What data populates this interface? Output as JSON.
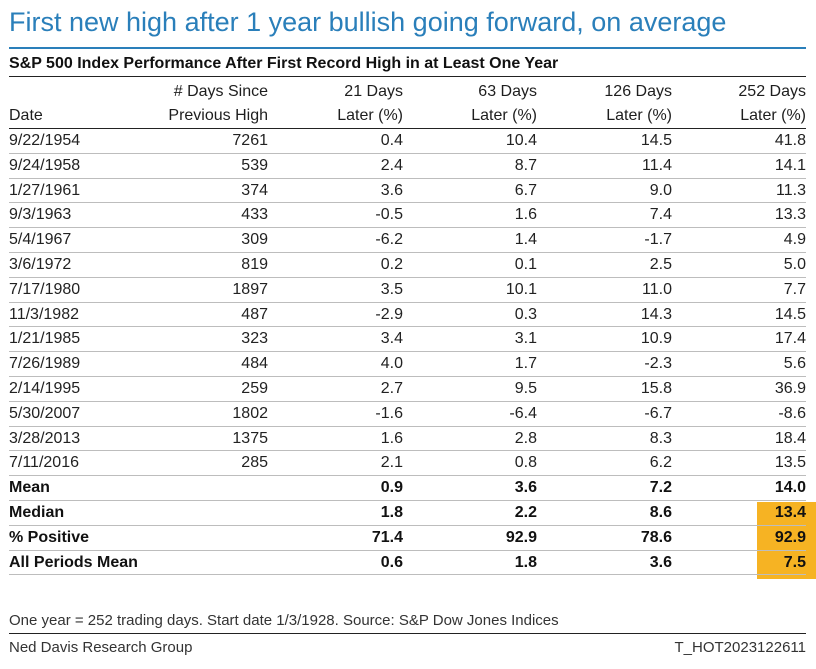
{
  "colors": {
    "title": "#2a7fba",
    "rule": "#2a7fba",
    "highlight": "#f6b323",
    "text": "#1e1e1e"
  },
  "chart_data": {
    "type": "table",
    "title": "First new high after 1 year bullish going forward, on average",
    "subtitle": "S&P 500 Index Performance After First Record High in at Least One Year",
    "columns": [
      {
        "line1": "",
        "line2": "Date"
      },
      {
        "line1": "# Days Since",
        "line2": "Previous High"
      },
      {
        "line1": "21 Days",
        "line2": "Later (%)"
      },
      {
        "line1": "63 Days",
        "line2": "Later (%)"
      },
      {
        "line1": "126 Days",
        "line2": "Later (%)"
      },
      {
        "line1": "252 Days",
        "line2": "Later (%)"
      }
    ],
    "rows": [
      [
        "9/22/1954",
        "7261",
        "0.4",
        "10.4",
        "14.5",
        "41.8"
      ],
      [
        "9/24/1958",
        "539",
        "2.4",
        "8.7",
        "11.4",
        "14.1"
      ],
      [
        "1/27/1961",
        "374",
        "3.6",
        "6.7",
        "9.0",
        "11.3"
      ],
      [
        "9/3/1963",
        "433",
        "-0.5",
        "1.6",
        "7.4",
        "13.3"
      ],
      [
        "5/4/1967",
        "309",
        "-6.2",
        "1.4",
        "-1.7",
        "4.9"
      ],
      [
        "3/6/1972",
        "819",
        "0.2",
        "0.1",
        "2.5",
        "5.0"
      ],
      [
        "7/17/1980",
        "1897",
        "3.5",
        "10.1",
        "11.0",
        "7.7"
      ],
      [
        "11/3/1982",
        "487",
        "-2.9",
        "0.3",
        "14.3",
        "14.5"
      ],
      [
        "1/21/1985",
        "323",
        "3.4",
        "3.1",
        "10.9",
        "17.4"
      ],
      [
        "7/26/1989",
        "484",
        "4.0",
        "1.7",
        "-2.3",
        "5.6"
      ],
      [
        "2/14/1995",
        "259",
        "2.7",
        "9.5",
        "15.8",
        "36.9"
      ],
      [
        "5/30/2007",
        "1802",
        "-1.6",
        "-6.4",
        "-6.7",
        "-8.6"
      ],
      [
        "3/28/2013",
        "1375",
        "1.6",
        "2.8",
        "8.3",
        "18.4"
      ],
      [
        "7/11/2016",
        "285",
        "2.1",
        "0.8",
        "6.2",
        "13.5"
      ]
    ],
    "summary_rows": [
      [
        "Mean",
        "",
        "0.9",
        "3.6",
        "7.2",
        "14.0"
      ],
      [
        "Median",
        "",
        "1.8",
        "2.2",
        "8.6",
        "13.4"
      ],
      [
        "% Positive",
        "",
        "71.4",
        "92.9",
        "78.6",
        "92.9"
      ],
      [
        "All Periods Mean",
        "",
        "0.6",
        "1.8",
        "3.6",
        "7.5"
      ]
    ],
    "highlighted": "252 Days Later (%) for Mean, Median, % Positive",
    "footnote": "One year = 252 trading days. Start date 1/3/1928. Source: S&P Dow Jones Indices",
    "source_left": "Ned Davis Research Group",
    "source_right": "T_HOT2023122611"
  }
}
